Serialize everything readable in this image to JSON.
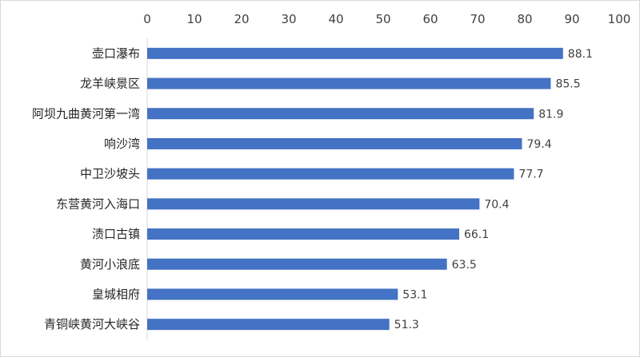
{
  "chart_data": {
    "type": "bar",
    "orientation": "horizontal",
    "x_axis_position": "top",
    "categories": [
      "壶口瀑布",
      "龙羊峡景区",
      "阿坝九曲黄河第一湾",
      "响沙湾",
      "中卫沙坡头",
      "东营黄河入海口",
      "渍口古镇",
      "黄河小浪底",
      "皇城相府",
      "青铜峡黄河大峡谷"
    ],
    "values": [
      88.1,
      85.5,
      81.9,
      79.4,
      77.7,
      70.4,
      66.1,
      63.5,
      53.1,
      51.3
    ],
    "value_labels": [
      "88.1",
      "85.5",
      "81.9",
      "79.4",
      "77.7",
      "70.4",
      "66.1",
      "63.5",
      "53.1",
      "51.3"
    ],
    "xlim": [
      0,
      100
    ],
    "xticks": [
      "0",
      "10",
      "20",
      "30",
      "40",
      "50",
      "60",
      "70",
      "80",
      "90",
      "100"
    ],
    "grid": false,
    "legend": "none",
    "bar_color": "#4472c4"
  }
}
